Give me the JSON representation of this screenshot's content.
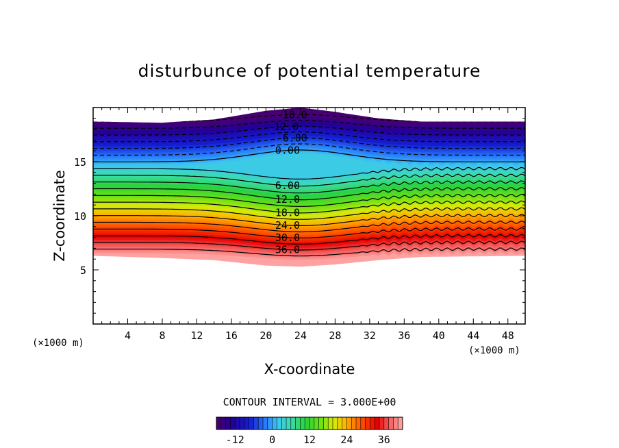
{
  "chart_data": {
    "type": "heatmap",
    "title": "disturbunce of potential temperature",
    "xlabel": "X-coordinate",
    "ylabel": "Z-coordinate",
    "x_unit": "(×1000 m)",
    "z_unit": "(×1000 m)",
    "xlim": [
      0,
      50
    ],
    "ylim": [
      0,
      20
    ],
    "x_ticks": [
      "4",
      "8",
      "12",
      "16",
      "20",
      "24",
      "28",
      "32",
      "36",
      "40",
      "44",
      "48"
    ],
    "y_ticks": [
      "5",
      "10",
      "15"
    ],
    "contour_interval_label": "CONTOUR INTERVAL = 3.000E+00",
    "contour_interval": 3,
    "color_range": [
      -18,
      42
    ],
    "colorbar_ticks": [
      "-12",
      "0",
      "12",
      "24",
      "36"
    ],
    "contour_labels": [
      {
        "text": "-18.0",
        "value": -18,
        "x": 23.0
      },
      {
        "text": "-12.0",
        "value": -12,
        "x": 22.0
      },
      {
        "text": "-6.00",
        "value": -6,
        "x": 23.0
      },
      {
        "text": "0.00",
        "value": 0,
        "x": 22.5
      },
      {
        "text": "6.00",
        "value": 6,
        "x": 22.5
      },
      {
        "text": "12.0",
        "value": 12,
        "x": 22.5
      },
      {
        "text": "18.0",
        "value": 18,
        "x": 22.5
      },
      {
        "text": "24.0",
        "value": 24,
        "x": 22.5
      },
      {
        "text": "30.0",
        "value": 30,
        "x": 22.5
      },
      {
        "text": "36.0",
        "value": 36,
        "x": 22.5
      }
    ],
    "field_profile": {
      "bottom_edge_z": {
        "x": [
          0,
          8,
          14,
          20,
          24,
          28,
          33,
          38,
          50
        ],
        "z": [
          6.3,
          6.1,
          5.9,
          5.4,
          5.3,
          5.5,
          5.9,
          6.2,
          6.3
        ]
      },
      "top_edge_z": {
        "x": [
          0,
          8,
          14,
          20,
          24,
          28,
          33,
          38,
          50
        ],
        "z": [
          18.7,
          18.6,
          18.9,
          19.7,
          20.0,
          19.6,
          19.0,
          18.7,
          18.7
        ]
      },
      "hump_center_x": 24,
      "hump_amplitude_z": 1.2
    }
  }
}
